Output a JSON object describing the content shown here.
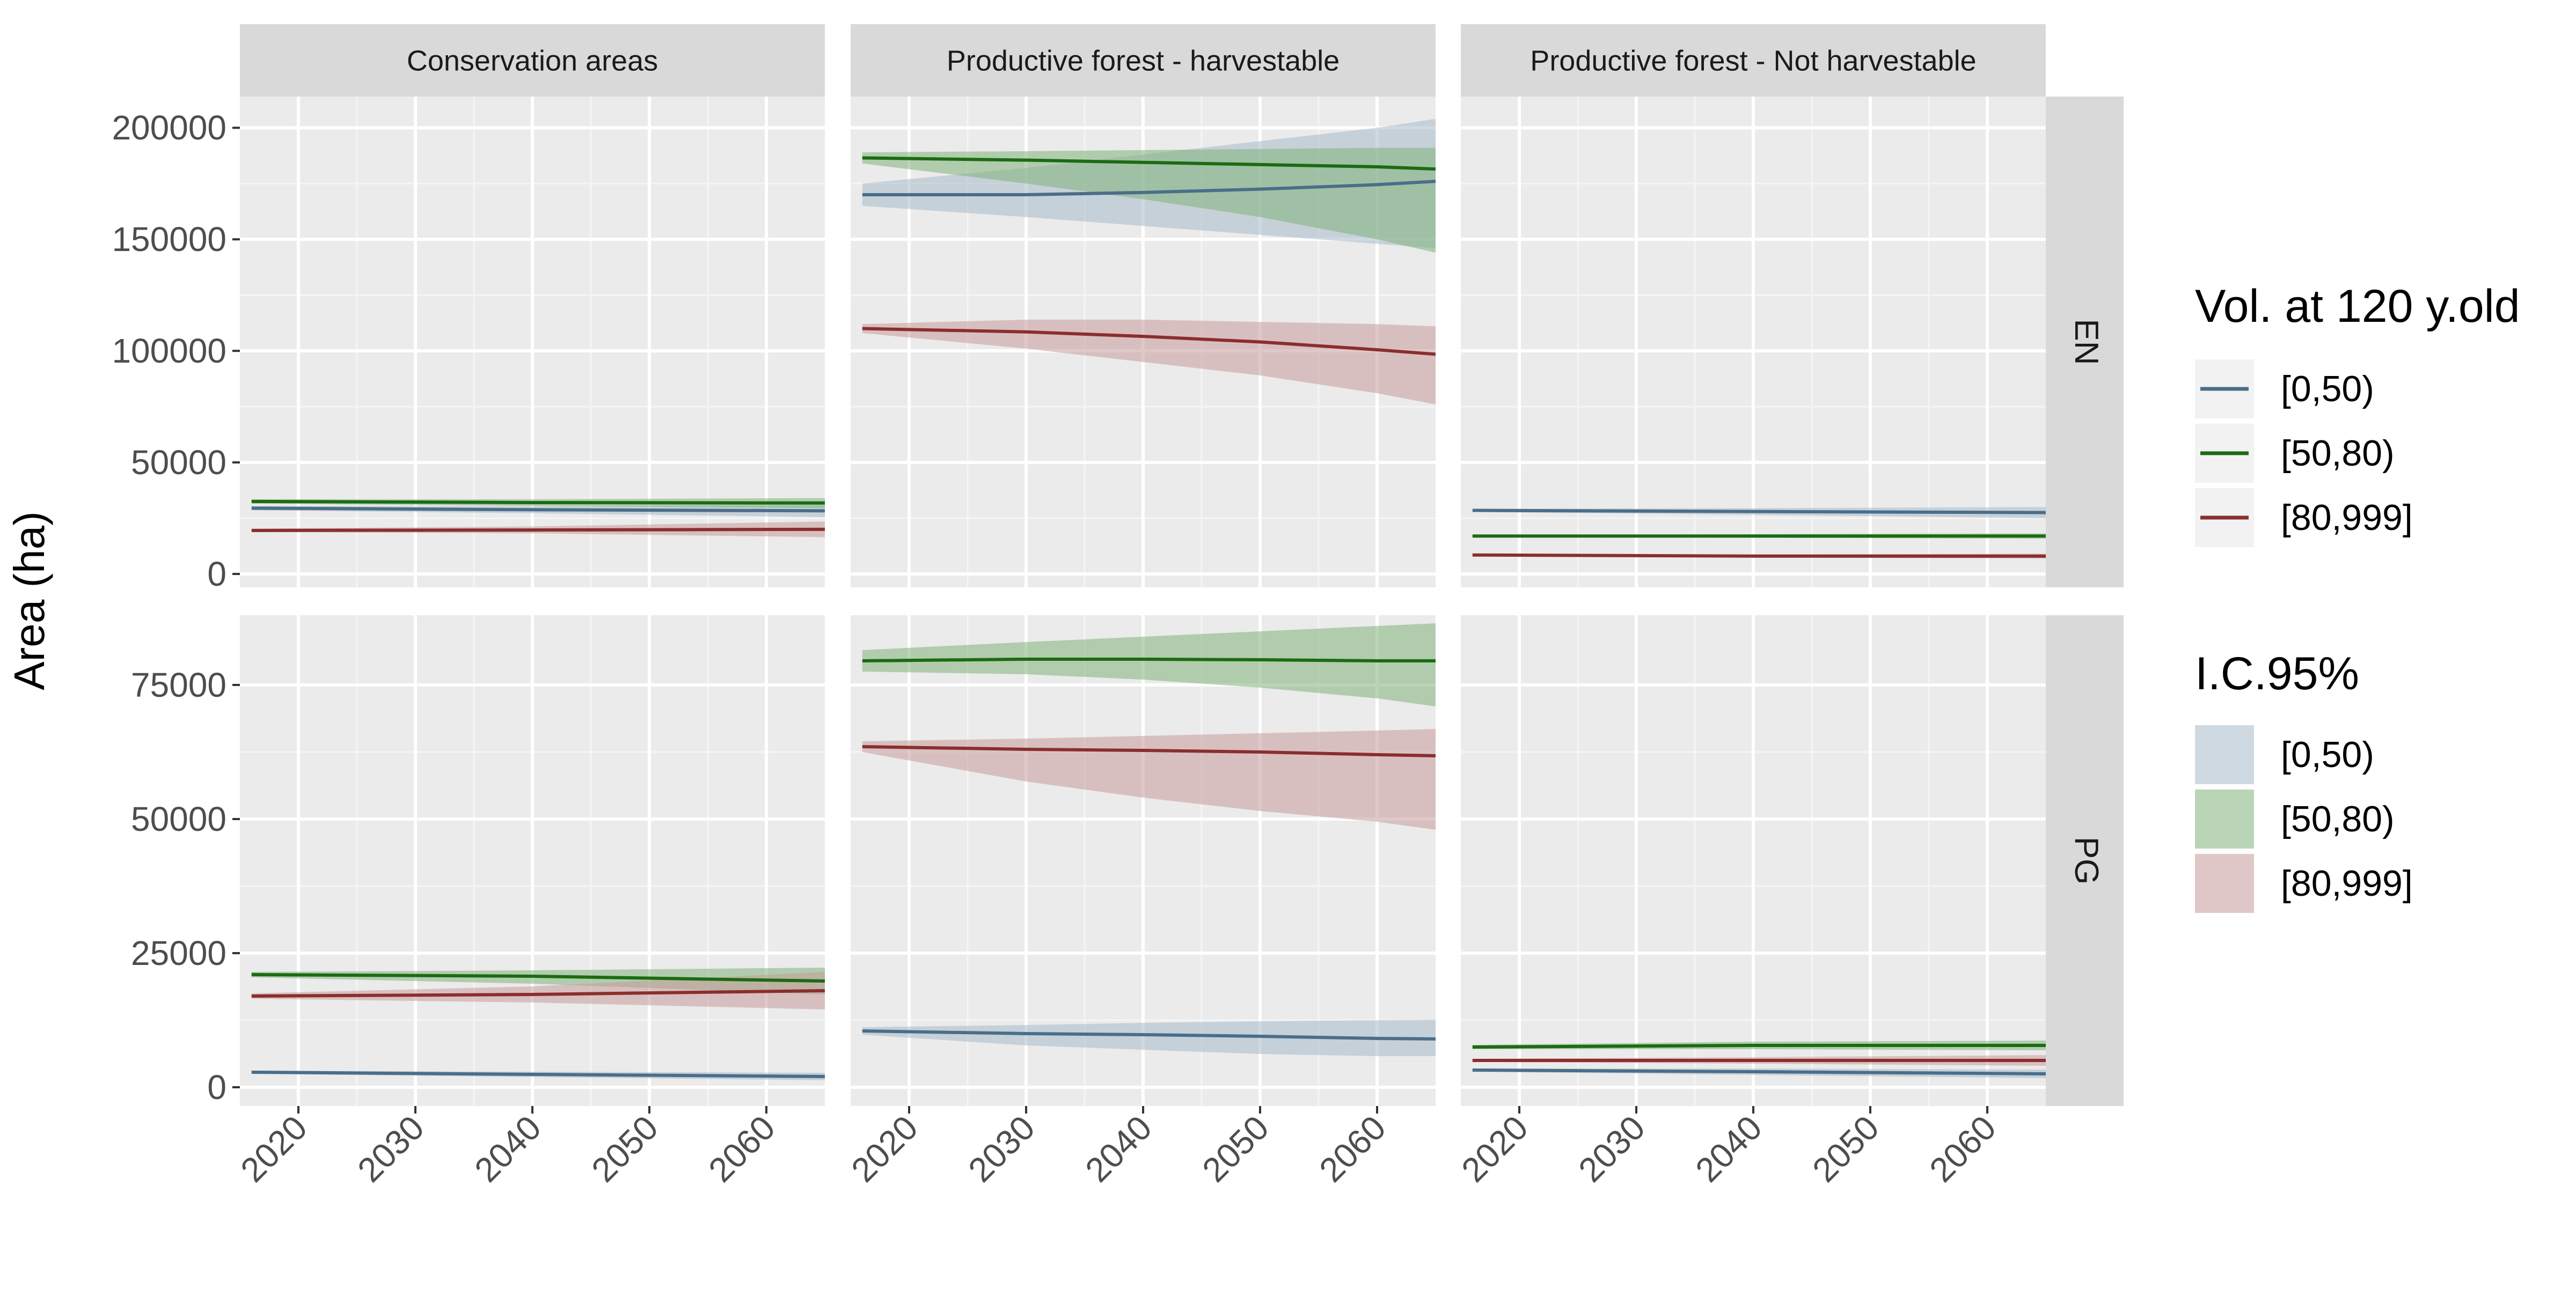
{
  "chart_data": {
    "type": "line",
    "ylabel": "Area (ha)",
    "xlabel": "",
    "facet_columns": [
      "Conservation areas",
      "Productive forest - harvestable",
      "Productive forest - Not harvestable"
    ],
    "facet_rows": [
      "EN",
      "PG"
    ],
    "x_range": [
      2015,
      2065
    ],
    "x_ticks": [
      2020,
      2030,
      2040,
      2050,
      2060
    ],
    "x_tick_labels": [
      "2020",
      "2030",
      "2040",
      "2050",
      "2060"
    ],
    "rows": [
      {
        "name": "EN",
        "ylim": [
          -6000,
          214000
        ],
        "y_ticks": [
          0,
          50000,
          100000,
          150000,
          200000
        ],
        "y_tick_labels": [
          "0",
          "50000",
          "100000",
          "150000",
          "200000"
        ]
      },
      {
        "name": "PG",
        "ylim": [
          -3500,
          88000
        ],
        "y_ticks": [
          0,
          25000,
          50000,
          75000
        ],
        "y_tick_labels": [
          "0",
          "25000",
          "50000",
          "75000"
        ]
      }
    ],
    "legend_line": {
      "title": "Vol. at 120 y.old",
      "entries": [
        "[0,50)",
        "[50,80)",
        "[80,999]"
      ]
    },
    "legend_ci": {
      "title": "I.C.95%",
      "entries": [
        "[0,50)",
        "[50,80)",
        "[80,999]"
      ]
    },
    "legend_position": "right",
    "grid": true,
    "colors": {
      "series": [
        "#4a6e8a",
        "#1b6b12",
        "#8b2e2e"
      ],
      "ribbons": [
        "#a8b9c9",
        "#7fb37a",
        "#c99a9a"
      ],
      "panel_bg": "#ebebeb",
      "strip_bg": "#d9d9d9"
    },
    "panels": [
      {
        "row": "EN",
        "column": "Conservation areas",
        "series": [
          {
            "name": "[0,50)",
            "x": [
              2016,
              2040,
              2065
            ],
            "y": [
              29500,
              28800,
              28300
            ],
            "lo": [
              28500,
              27200,
              25500
            ],
            "hi": [
              30500,
              30300,
              30800
            ]
          },
          {
            "name": "[50,80)",
            "x": [
              2016,
              2040,
              2065
            ],
            "y": [
              32500,
              32000,
              31800
            ],
            "lo": [
              31500,
              30500,
              29500
            ],
            "hi": [
              33500,
              33500,
              34000
            ]
          },
          {
            "name": "[80,999]",
            "x": [
              2016,
              2040,
              2065
            ],
            "y": [
              19500,
              19700,
              20000
            ],
            "lo": [
              18800,
              18200,
              16500
            ],
            "hi": [
              20300,
              21300,
              23500
            ]
          }
        ]
      },
      {
        "row": "EN",
        "column": "Productive forest - harvestable",
        "series": [
          {
            "name": "[0,50)",
            "x": [
              2016,
              2030,
              2040,
              2050,
              2060,
              2065
            ],
            "y": [
              170000,
              170000,
              171000,
              172500,
              174500,
              176000
            ],
            "lo": [
              165000,
              160000,
              156000,
              152000,
              148000,
              146000
            ],
            "hi": [
              175000,
              182000,
              188000,
              194000,
              200000,
              204000
            ]
          },
          {
            "name": "[50,80)",
            "x": [
              2016,
              2030,
              2040,
              2050,
              2060,
              2065
            ],
            "y": [
              186500,
              185500,
              184500,
              183500,
              182500,
              181500
            ],
            "lo": [
              184000,
              175000,
              168000,
              160000,
              150000,
              144000
            ],
            "hi": [
              189000,
              189500,
              190000,
              190500,
              191000,
              191000
            ]
          },
          {
            "name": "[80,999]",
            "x": [
              2016,
              2030,
              2040,
              2050,
              2060,
              2065
            ],
            "y": [
              110000,
              108500,
              106500,
              104000,
              100500,
              98500
            ],
            "lo": [
              108000,
              101000,
              95000,
              89000,
              81000,
              76000
            ],
            "hi": [
              112000,
              114000,
              114000,
              113000,
              112000,
              111000
            ]
          }
        ]
      },
      {
        "row": "EN",
        "column": "Productive forest - Not harvestable",
        "series": [
          {
            "name": "[0,50)",
            "x": [
              2016,
              2040,
              2065
            ],
            "y": [
              28500,
              28000,
              27500
            ],
            "lo": [
              27800,
              26500,
              25000
            ],
            "hi": [
              29200,
              29500,
              30000
            ]
          },
          {
            "name": "[50,80)",
            "x": [
              2016,
              2040,
              2065
            ],
            "y": [
              17000,
              17000,
              17000
            ],
            "lo": [
              16500,
              16200,
              15800
            ],
            "hi": [
              17500,
              17800,
              18200
            ]
          },
          {
            "name": "[80,999]",
            "x": [
              2016,
              2040,
              2065
            ],
            "y": [
              8500,
              8000,
              8000
            ],
            "lo": [
              8000,
              7300,
              6900
            ],
            "hi": [
              9000,
              8700,
              9100
            ]
          }
        ]
      },
      {
        "row": "PG",
        "column": "Conservation areas",
        "series": [
          {
            "name": "[0,50)",
            "x": [
              2016,
              2040,
              2065
            ],
            "y": [
              2800,
              2400,
              2000
            ],
            "lo": [
              2500,
              1900,
              1300
            ],
            "hi": [
              3100,
              2900,
              2700
            ]
          },
          {
            "name": "[50,80)",
            "x": [
              2016,
              2040,
              2065
            ],
            "y": [
              21000,
              20700,
              19800
            ],
            "lo": [
              20500,
              19300,
              17300
            ],
            "hi": [
              21500,
              21800,
              22300
            ]
          },
          {
            "name": "[80,999]",
            "x": [
              2016,
              2040,
              2065
            ],
            "y": [
              17000,
              17300,
              18000
            ],
            "lo": [
              16500,
              15800,
              14500
            ],
            "hi": [
              17500,
              18800,
              21500
            ]
          }
        ]
      },
      {
        "row": "PG",
        "column": "Productive forest - harvestable",
        "series": [
          {
            "name": "[0,50)",
            "x": [
              2016,
              2030,
              2040,
              2050,
              2060,
              2065
            ],
            "y": [
              10500,
              10000,
              9800,
              9500,
              9100,
              9000
            ],
            "lo": [
              9800,
              7800,
              7000,
              6200,
              5800,
              5800
            ],
            "hi": [
              11200,
              11600,
              12000,
              12300,
              12500,
              12600
            ]
          },
          {
            "name": "[50,80)",
            "x": [
              2016,
              2030,
              2040,
              2050,
              2060,
              2065
            ],
            "y": [
              79500,
              79800,
              79800,
              79700,
              79500,
              79500
            ],
            "lo": [
              77500,
              77000,
              76000,
              74500,
              72500,
              71000
            ],
            "hi": [
              81500,
              83000,
              84000,
              85000,
              86000,
              86500
            ]
          },
          {
            "name": "[80,999]",
            "x": [
              2016,
              2030,
              2040,
              2050,
              2060,
              2065
            ],
            "y": [
              63500,
              63000,
              62800,
              62500,
              62000,
              61800
            ],
            "lo": [
              62500,
              57000,
              54000,
              51500,
              49500,
              48000
            ],
            "hi": [
              64500,
              65000,
              65500,
              66000,
              66500,
              66800
            ]
          }
        ]
      },
      {
        "row": "PG",
        "column": "Productive forest - Not harvestable",
        "series": [
          {
            "name": "[0,50)",
            "x": [
              2016,
              2040,
              2065
            ],
            "y": [
              3200,
              2900,
              2500
            ],
            "lo": [
              2900,
              2300,
              1700
            ],
            "hi": [
              3500,
              3500,
              3300
            ]
          },
          {
            "name": "[50,80)",
            "x": [
              2016,
              2040,
              2065
            ],
            "y": [
              7500,
              7800,
              7800
            ],
            "lo": [
              7100,
              7100,
              6900
            ],
            "hi": [
              7900,
              8500,
              8700
            ]
          },
          {
            "name": "[80,999]",
            "x": [
              2016,
              2040,
              2065
            ],
            "y": [
              5000,
              5000,
              5000
            ],
            "lo": [
              4700,
              4400,
              4000
            ],
            "hi": [
              5300,
              5600,
              6000
            ]
          }
        ]
      }
    ]
  }
}
